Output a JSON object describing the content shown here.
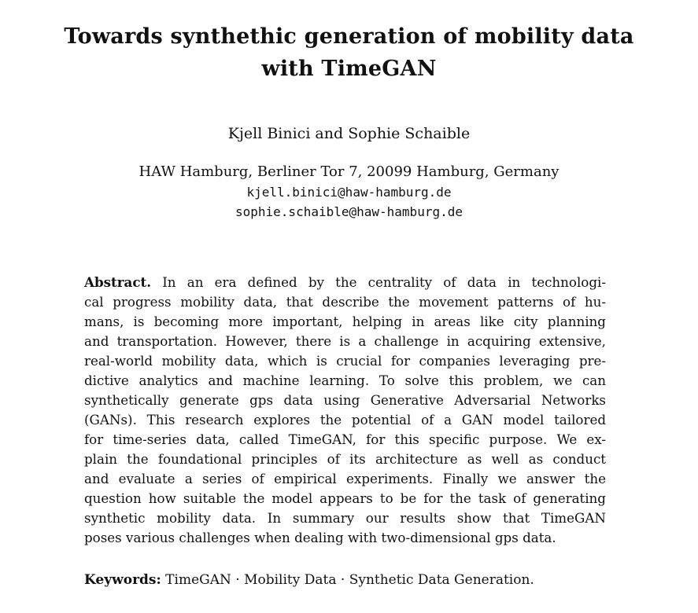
{
  "paper": {
    "title_line1": "Towards synthethic generation of mobility data",
    "title_line2": "with TimeGAN",
    "authors": "Kjell Binici and Sophie Schaible",
    "affiliation": "HAW Hamburg, Berliner Tor 7, 20099 Hamburg, Germany",
    "emails": [
      "kjell.binici@haw-hamburg.de",
      "sophie.schaible@haw-hamburg.de"
    ],
    "abstract": {
      "label": "Abstract.",
      "lines": [
        "In an era defined by the centrality of data in technologi-",
        "cal progress mobility data, that describe the movement patterns of hu-",
        "mans, is becoming more important, helping in areas like city planning",
        "and transportation. However, there is a challenge in acquiring extensive,",
        "real-world mobility data, which is crucial for companies leveraging pre-",
        "dictive analytics and machine learning. To solve this problem, we can",
        "synthetically generate gps data using Generative Adversarial Networks",
        "(GANs). This research explores the potential of a GAN model tailored",
        "for time-series data, called TimeGAN, for this specific purpose. We ex-",
        "plain the foundational principles of its architecture as well as conduct",
        "and evaluate a series of empirical experiments. Finally we answer the",
        "question how suitable the model appears to be for the task of generating",
        "synthetic mobility data. In summary our results show that TimeGAN",
        "poses various challenges when dealing with two-dimensional gps data."
      ]
    },
    "keywords": {
      "label": "Keywords:",
      "text": "TimeGAN · Mobility Data · Synthetic Data Generation."
    }
  }
}
